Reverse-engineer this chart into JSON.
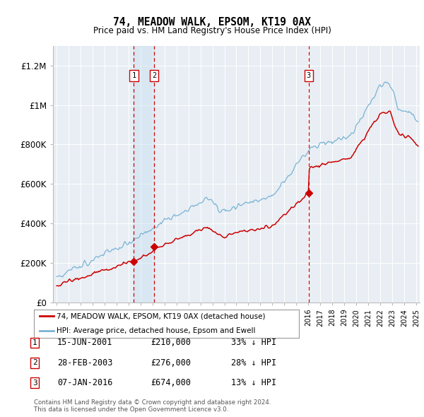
{
  "title": "74, MEADOW WALK, EPSOM, KT19 0AX",
  "subtitle": "Price paid vs. HM Land Registry's House Price Index (HPI)",
  "background_color": "#ffffff",
  "plot_bg_color": "#e8eef4",
  "grid_color": "#ffffff",
  "hpi_color": "#7ab3d4",
  "price_color": "#cc0000",
  "vline_color": "#cc0000",
  "shade_color": "#c8dff0",
  "ylim": [
    0,
    1300000
  ],
  "yticks": [
    0,
    200000,
    400000,
    600000,
    800000,
    1000000,
    1200000
  ],
  "ytick_labels": [
    "£0",
    "£200K",
    "£400K",
    "£600K",
    "£800K",
    "£1M",
    "£1.2M"
  ],
  "transactions": [
    {
      "date_num": 2001.45,
      "price": 210000,
      "label": "1",
      "note": "15-JUN-2001",
      "amount": "£210,000",
      "pct": "33% ↓ HPI"
    },
    {
      "date_num": 2003.15,
      "price": 276000,
      "label": "2",
      "note": "28-FEB-2003",
      "amount": "£276,000",
      "pct": "28% ↓ HPI"
    },
    {
      "date_num": 2016.02,
      "price": 674000,
      "label": "3",
      "note": "07-JAN-2016",
      "amount": "£674,000",
      "pct": "13% ↓ HPI"
    }
  ],
  "legend_line1": "74, MEADOW WALK, EPSOM, KT19 0AX (detached house)",
  "legend_line2": "HPI: Average price, detached house, Epsom and Ewell",
  "footnote1": "Contains HM Land Registry data © Crown copyright and database right 2024.",
  "footnote2": "This data is licensed under the Open Government Licence v3.0.",
  "xlim_start": 1994.7,
  "xlim_end": 2025.3
}
